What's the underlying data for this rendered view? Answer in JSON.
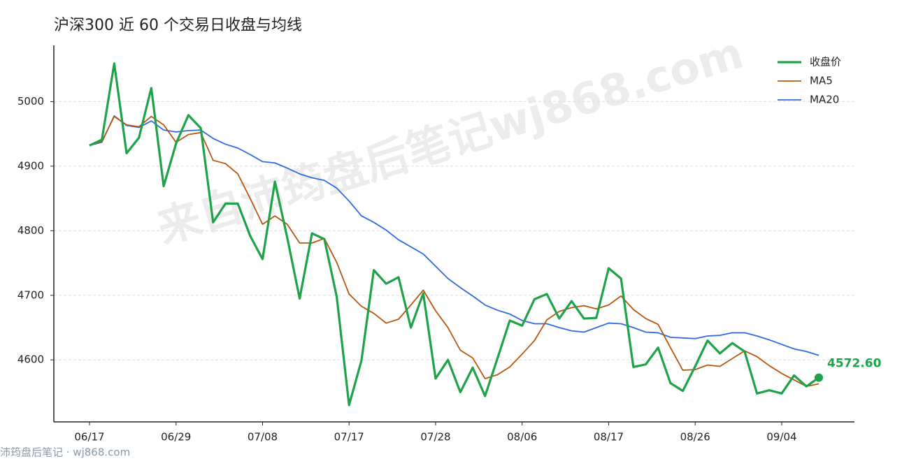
{
  "chart_data": {
    "type": "line",
    "title": "沪深300 近 60 个交易日收盘与均线",
    "categories": [
      "06/17",
      null,
      null,
      null,
      null,
      null,
      null,
      "06/29",
      null,
      null,
      null,
      null,
      null,
      null,
      "07/08",
      null,
      null,
      null,
      null,
      null,
      null,
      "07/17",
      null,
      null,
      null,
      null,
      null,
      null,
      "07/28",
      null,
      null,
      null,
      null,
      null,
      null,
      "08/06",
      null,
      null,
      null,
      null,
      null,
      null,
      "08/17",
      null,
      null,
      null,
      null,
      null,
      null,
      "08/26",
      null,
      null,
      null,
      null,
      null,
      null,
      "09/04",
      null,
      null,
      null
    ],
    "series": [
      {
        "name": "收盘价",
        "color": "#1fa34a",
        "values": [
          4932,
          4941,
          5059,
          4920,
          4944,
          5021,
          4869,
          4935,
          4979,
          4959,
          4813,
          4842,
          4842,
          4792,
          4756,
          4876,
          4789,
          4695,
          4796,
          4787,
          4698,
          4530,
          4599,
          4739,
          4718,
          4728,
          4650,
          4703,
          4571,
          4600,
          4550,
          4588,
          4544,
          4602,
          4661,
          4653,
          4694,
          4702,
          4664,
          4691,
          4664,
          4665,
          4742,
          4726,
          4589,
          4593,
          4619,
          4564,
          4552,
          4590,
          4630,
          4610,
          4626,
          4613,
          4548,
          4553,
          4548,
          4576,
          4559,
          4572.6
        ],
        "value_labels": [
          null,
          null,
          null,
          null,
          null,
          null,
          null,
          null,
          null,
          null,
          null,
          null,
          null,
          null,
          null,
          null,
          null,
          null,
          null,
          null,
          null,
          null,
          null,
          null,
          null,
          null,
          null,
          null,
          null,
          null,
          null,
          null,
          null,
          null,
          null,
          null,
          null,
          null,
          null,
          null,
          null,
          null,
          null,
          null,
          null,
          null,
          null,
          null,
          null,
          null,
          null,
          null,
          null,
          null,
          null,
          null,
          null,
          null,
          null,
          "4572.60"
        ]
      },
      {
        "name": "MA5",
        "color": "#b8560f",
        "values": [
          4932,
          4938,
          4977,
          4964,
          4961,
          4977,
          4964,
          4937,
          4949,
          4952,
          4909,
          4904,
          4888,
          4850,
          4810,
          4823,
          4810,
          4781,
          4781,
          4788,
          4751,
          4702,
          4683,
          4672,
          4657,
          4663,
          4685,
          4708,
          4676,
          4650,
          4615,
          4603,
          4571,
          4577,
          4589,
          4609,
          4630,
          4662,
          4675,
          4681,
          4684,
          4679,
          4685,
          4699,
          4678,
          4664,
          4655,
          4619,
          4584,
          4585,
          4592,
          4590,
          4602,
          4614,
          4605,
          4591,
          4579,
          4569,
          4559,
          4563
        ]
      },
      {
        "name": "MA20",
        "color": "#2f6be0",
        "values": [
          4932,
          4937,
          4978,
          4963,
          4960,
          4970,
          4956,
          4953,
          4955,
          4956,
          4943,
          4934,
          4928,
          4918,
          4907,
          4905,
          4897,
          4888,
          4882,
          4878,
          4866,
          4846,
          4823,
          4813,
          4801,
          4786,
          4775,
          4764,
          4745,
          4726,
          4712,
          4699,
          4685,
          4677,
          4671,
          4661,
          4656,
          4656,
          4650,
          4645,
          4643,
          4650,
          4657,
          4656,
          4650,
          4643,
          4642,
          4635,
          4634,
          4633,
          4637,
          4638,
          4642,
          4642,
          4637,
          4631,
          4624,
          4617,
          4613,
          4607
        ]
      }
    ],
    "ylim": [
      4504,
      5087
    ],
    "yticks": [
      4600,
      4700,
      4800,
      4900,
      5000
    ],
    "grid": true,
    "legend": "upper right",
    "watermark": "来自沛筠盘后笔记wj868.com",
    "footer": "沛筠盘后笔记 · wj868.com"
  }
}
